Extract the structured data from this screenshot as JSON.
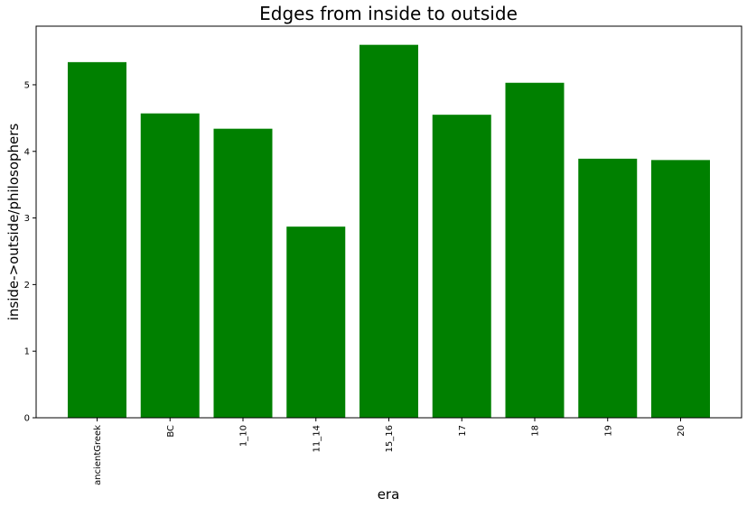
{
  "chart_data": {
    "type": "bar",
    "title": "Edges from inside to outside",
    "xlabel": "era",
    "ylabel": "inside->outside/philosophers",
    "categories": [
      "ancientGreek",
      "BC",
      "1_10",
      "11_14",
      "15_16",
      "17",
      "18",
      "19",
      "20"
    ],
    "values": [
      5.34,
      4.57,
      4.34,
      2.87,
      5.6,
      4.55,
      5.03,
      3.89,
      3.87
    ],
    "yticks": [
      "0",
      "1",
      "2",
      "3",
      "4",
      "5"
    ],
    "ylim": [
      0,
      5.88
    ],
    "bar_color": "#008000",
    "grid": false
  }
}
